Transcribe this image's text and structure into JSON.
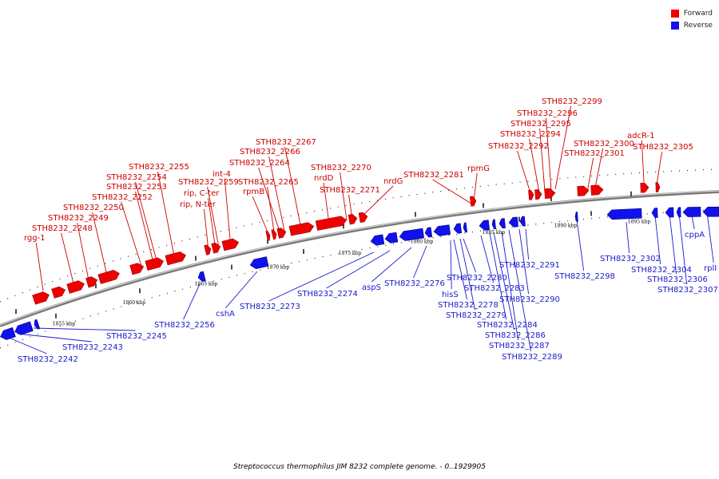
{
  "caption": "Streptococcus thermophilus JIM 8232 complete genome. - 0..1929905",
  "colors": {
    "forward": "#ee0000",
    "reverse": "#1111ee",
    "track": "#999999",
    "label_forward": "#cc0000",
    "label_reverse": "#1a1acc"
  },
  "legend": [
    {
      "label": "Forward",
      "color": "#ee0000"
    },
    {
      "label": "Reverse",
      "color": "#1111ee"
    }
  ],
  "scale_labels": [
    {
      "kbp": 1855,
      "label": "1855 kbp"
    },
    {
      "kbp": 1860,
      "label": "1860 kbp"
    },
    {
      "kbp": 1865,
      "label": "1865 kbp"
    },
    {
      "kbp": 1870,
      "label": "1870 kbp"
    },
    {
      "kbp": 1875,
      "label": "1875 kbp"
    },
    {
      "kbp": 1880,
      "label": "1880 kbp"
    },
    {
      "kbp": 1885,
      "label": "1885 kbp"
    },
    {
      "kbp": 1890,
      "label": "1890 kbp"
    },
    {
      "kbp": 1895,
      "label": "1895 kbp"
    }
  ],
  "forward_labels": [
    "rgg-1",
    "STH8232_2248",
    "STH8232_2249",
    "STH8232_2250",
    "STH8232_2252",
    "STH8232_2253",
    "STH8232_2254",
    "STH8232_2255",
    "rip, N-ter",
    "rip, C-ter",
    "STH8232_2259",
    "int-4",
    "rpmB",
    "STH8232_2265",
    "STH8232_2264",
    "STH8232_2266",
    "STH8232_2267",
    "nrdD",
    "STH8232_2271",
    "STH8232_2270",
    "nrdG",
    "STH8232_2281",
    "rpmG",
    "STH8232_2292",
    "STH8232_2294",
    "STH8232_2295",
    "STH8232_2296",
    "STH8232_2299",
    "STH8232_2301",
    "STH8232_2300",
    "STH8232_2305",
    "adcR-1"
  ],
  "reverse_labels": [
    "STH8232_2242",
    "STH8232_2243",
    "STH8232_2245",
    "STH8232_2256",
    "cshA",
    "STH8232_2273",
    "STH8232_2274",
    "aspS",
    "STH8232_2276",
    "hisS",
    "STH8232_2278",
    "STH8232_2279",
    "STH8232_2280",
    "STH8232_2283",
    "STH8232_2284",
    "STH8232_2286",
    "STH8232_2287",
    "STH8232_2289",
    "STH8232_2290",
    "STH8232_2291",
    "STH8232_2298",
    "STH8232_2302",
    "STH8232_2304",
    "STH8232_2306",
    "STH8232_2307",
    "cppA",
    "rplI"
  ]
}
